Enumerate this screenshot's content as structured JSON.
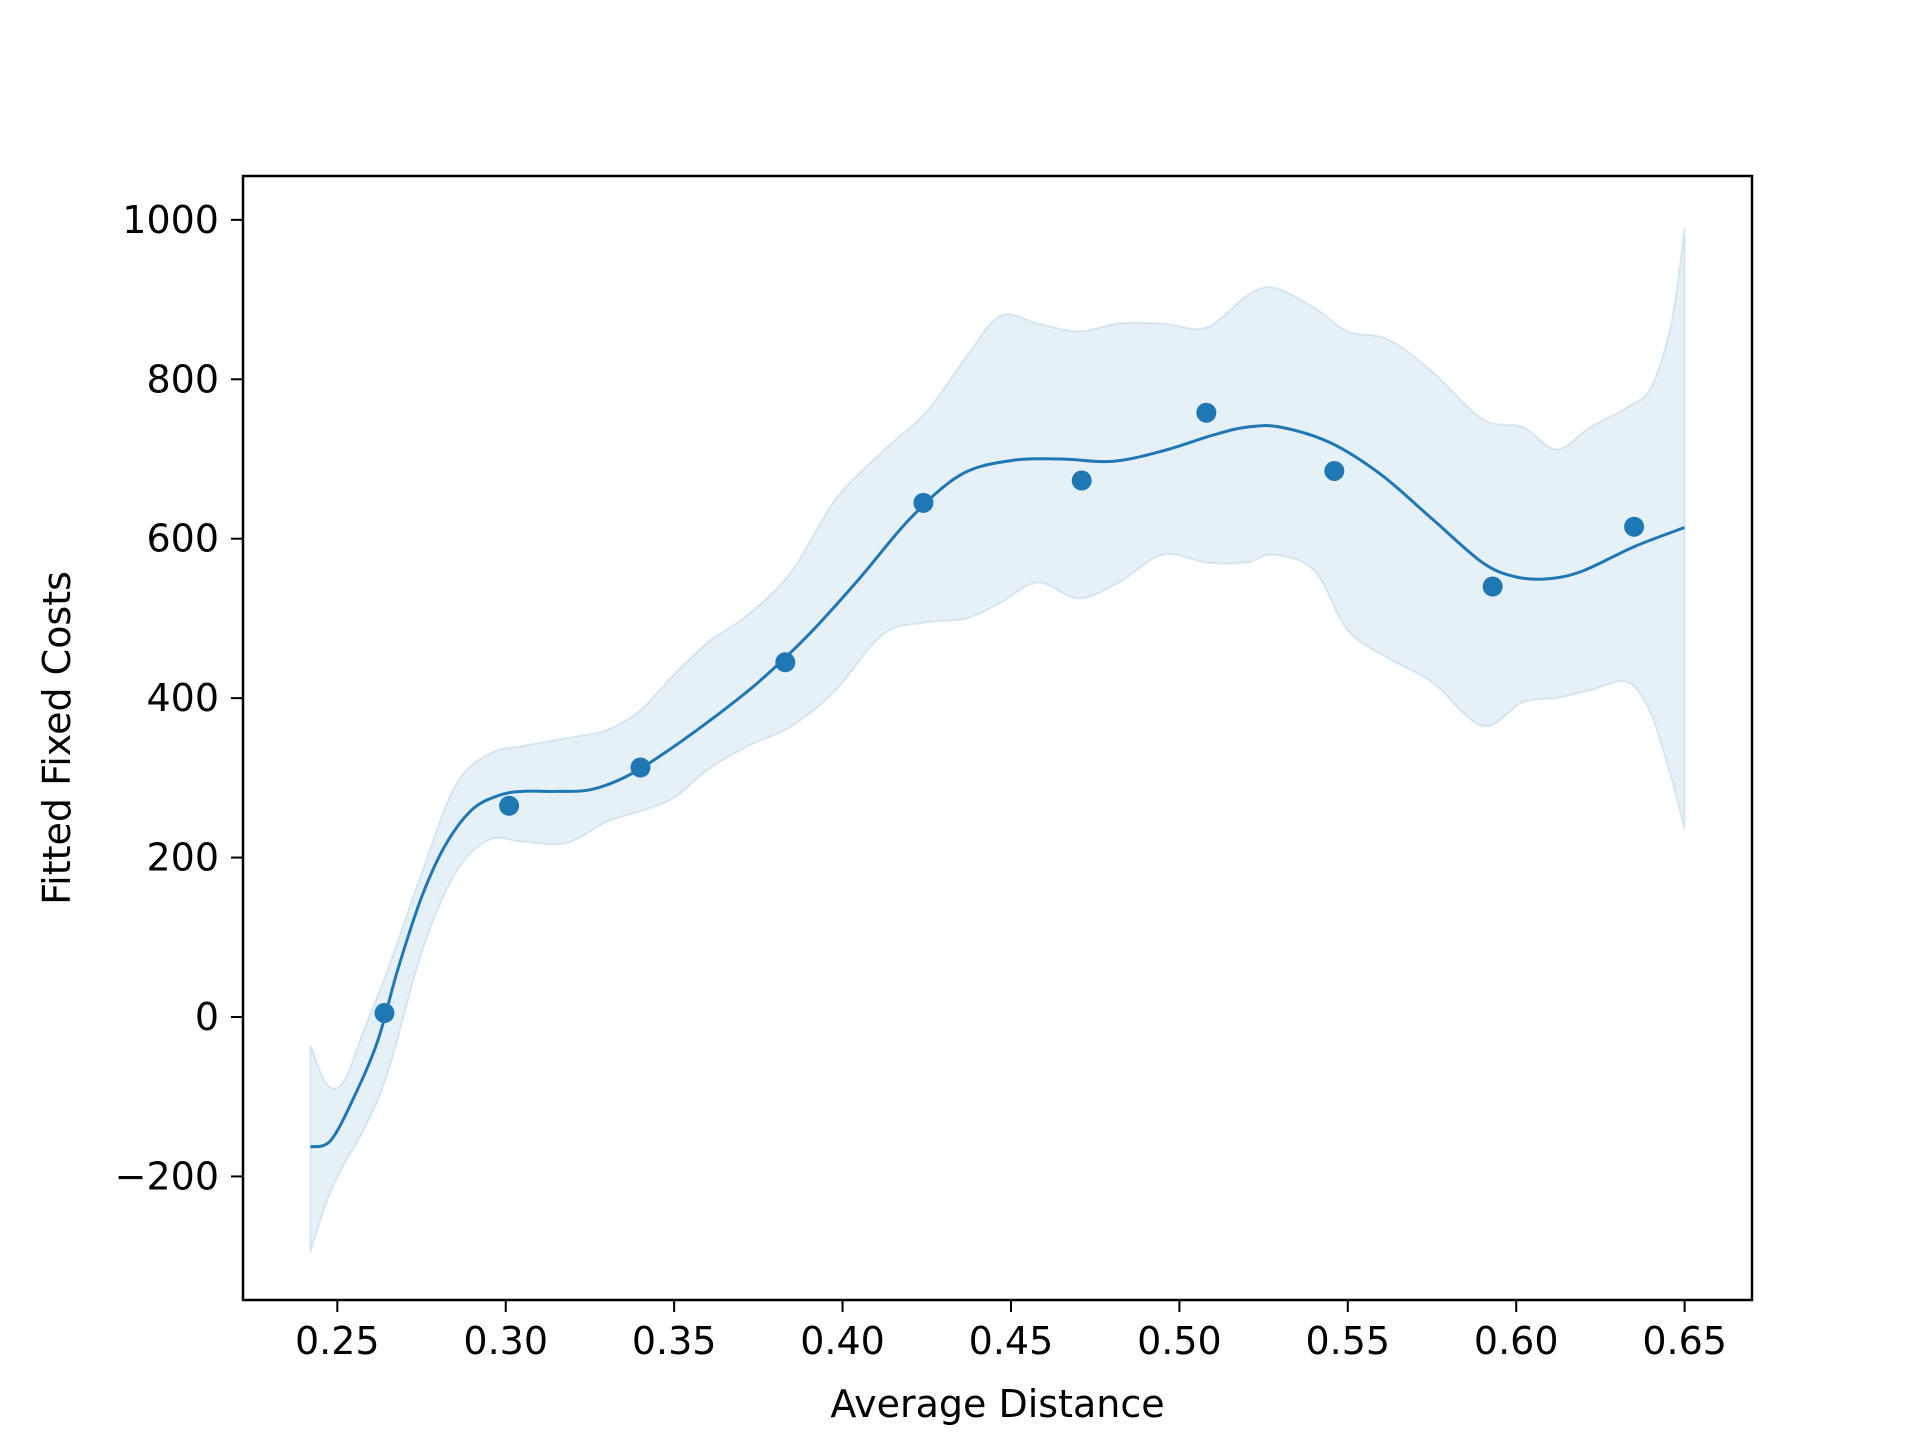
{
  "chart_data": {
    "type": "line",
    "title": "",
    "xlabel": "Average Distance",
    "ylabel": "Fitted Fixed Costs",
    "xlim": [
      0.222,
      0.67
    ],
    "ylim": [
      -355,
      1055
    ],
    "xticks": [
      0.25,
      0.3,
      0.35,
      0.4,
      0.45,
      0.5,
      0.55,
      0.6,
      0.65
    ],
    "xtick_labels": [
      "0.25",
      "0.30",
      "0.35",
      "0.40",
      "0.45",
      "0.50",
      "0.55",
      "0.60",
      "0.65"
    ],
    "yticks": [
      -200,
      0,
      200,
      400,
      600,
      800,
      1000
    ],
    "ytick_labels": [
      "−200",
      "0",
      "200",
      "400",
      "600",
      "800",
      "1000"
    ],
    "grid": false,
    "colors": {
      "line": "#1f77b4",
      "points": "#1f77b4",
      "band": "#1f77b4"
    },
    "points": {
      "x": [
        0.264,
        0.301,
        0.34,
        0.383,
        0.424,
        0.471,
        0.508,
        0.546,
        0.593,
        0.635
      ],
      "y": [
        5,
        265,
        313,
        445,
        645,
        673,
        758,
        685,
        540,
        615
      ]
    },
    "fit_line": {
      "x": [
        0.242,
        0.248,
        0.255,
        0.262,
        0.268,
        0.275,
        0.282,
        0.29,
        0.298,
        0.305,
        0.315,
        0.325,
        0.335,
        0.345,
        0.36,
        0.375,
        0.39,
        0.405,
        0.42,
        0.435,
        0.45,
        0.465,
        0.48,
        0.495,
        0.51,
        0.52,
        0.53,
        0.545,
        0.56,
        0.575,
        0.59,
        0.6,
        0.61,
        0.62,
        0.635,
        0.65
      ],
      "y": [
        -163,
        -155,
        -100,
        -30,
        60,
        150,
        215,
        260,
        278,
        283,
        283,
        285,
        300,
        325,
        370,
        420,
        480,
        550,
        625,
        680,
        698,
        700,
        697,
        710,
        730,
        740,
        740,
        720,
        680,
        625,
        570,
        552,
        550,
        560,
        590,
        614
      ]
    },
    "band_upper": {
      "x": [
        0.242,
        0.247,
        0.252,
        0.258,
        0.265,
        0.275,
        0.285,
        0.295,
        0.305,
        0.318,
        0.33,
        0.34,
        0.35,
        0.36,
        0.372,
        0.385,
        0.398,
        0.412,
        0.425,
        0.437,
        0.447,
        0.458,
        0.47,
        0.482,
        0.495,
        0.508,
        0.52,
        0.528,
        0.54,
        0.55,
        0.562,
        0.575,
        0.59,
        0.602,
        0.612,
        0.622,
        0.633,
        0.64,
        0.646,
        0.65
      ],
      "y": [
        -35,
        -85,
        -80,
        -15,
        60,
        180,
        290,
        330,
        340,
        350,
        360,
        385,
        430,
        470,
        505,
        560,
        650,
        710,
        760,
        830,
        880,
        870,
        860,
        870,
        870,
        865,
        905,
        915,
        890,
        860,
        850,
        810,
        750,
        740,
        712,
        740,
        765,
        790,
        870,
        990
      ]
    },
    "band_lower": {
      "x": [
        0.242,
        0.247,
        0.252,
        0.258,
        0.265,
        0.275,
        0.285,
        0.295,
        0.305,
        0.318,
        0.33,
        0.34,
        0.35,
        0.36,
        0.372,
        0.385,
        0.398,
        0.412,
        0.425,
        0.437,
        0.447,
        0.458,
        0.47,
        0.482,
        0.495,
        0.508,
        0.52,
        0.528,
        0.54,
        0.55,
        0.562,
        0.575,
        0.59,
        0.602,
        0.612,
        0.622,
        0.633,
        0.64,
        0.646,
        0.65
      ],
      "y": [
        -295,
        -230,
        -185,
        -140,
        -70,
        80,
        180,
        222,
        220,
        218,
        245,
        258,
        275,
        310,
        340,
        365,
        410,
        480,
        495,
        500,
        520,
        545,
        525,
        545,
        580,
        570,
        570,
        580,
        560,
        485,
        450,
        420,
        365,
        395,
        400,
        410,
        420,
        380,
        300,
        235
      ]
    }
  }
}
